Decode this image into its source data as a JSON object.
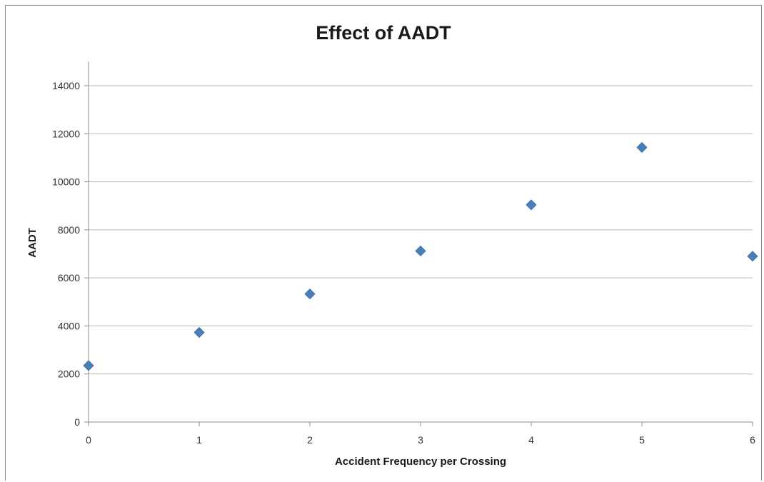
{
  "chart_data": {
    "type": "scatter",
    "title": "Effect of AADT",
    "xlabel": "Accident Frequency per Crossing",
    "ylabel": "AADT",
    "xlim": [
      0,
      6
    ],
    "ylim": [
      0,
      15000
    ],
    "x_ticks": [
      "0",
      "1",
      "2",
      "3",
      "4",
      "5",
      "6"
    ],
    "y_ticks": [
      "0",
      "2000",
      "4000",
      "6000",
      "8000",
      "10000",
      "12000",
      "14000"
    ],
    "grid": "horizontal",
    "marker": "diamond",
    "color": "#4a7ebb",
    "series": [
      {
        "x": [
          0,
          1,
          2,
          3,
          4,
          5,
          6
        ],
        "y": [
          2350,
          3730,
          5330,
          7120,
          9040,
          11430,
          6900
        ]
      }
    ]
  }
}
